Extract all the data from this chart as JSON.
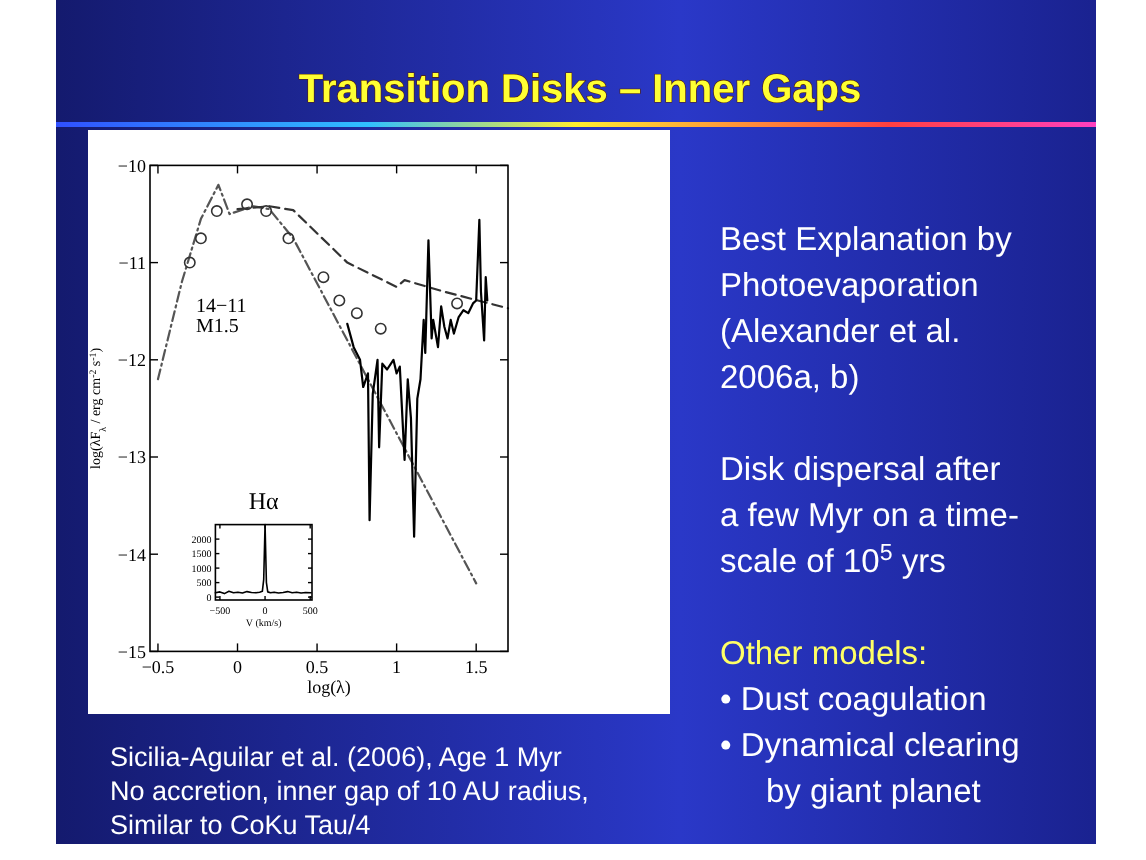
{
  "chart_data": [
    {
      "type": "line",
      "xlabel": "log(λ)",
      "ylabel": "log(λF$_{λ}$ / erg cm$^{-2}$ s$^{-1}$)",
      "xlim": [
        -0.55,
        1.7
      ],
      "ylim": [
        -15,
        -10
      ],
      "xticks": [
        {
          "value": -0.5,
          "label": "−0.5"
        },
        0,
        0.5,
        1,
        1.5
      ],
      "yticks": [
        {
          "value": -15,
          "label": "−15"
        },
        {
          "value": -14,
          "label": "−14"
        },
        {
          "value": -13,
          "label": "−13"
        },
        {
          "value": -12,
          "label": "−12"
        },
        {
          "value": -11,
          "label": "−11"
        },
        {
          "value": -10,
          "label": "−10"
        }
      ],
      "annotations": [
        "14−11",
        "M1.5"
      ],
      "series": [
        {
          "type": "line",
          "line_style": "dotted",
          "color": "#555555",
          "x": [
            -0.5,
            -0.35,
            -0.23,
            -0.12,
            -0.05,
            0.1,
            0.2,
            0.35,
            1.5
          ],
          "values": [
            -12.2,
            -11.2,
            -10.55,
            -10.2,
            -10.5,
            -10.42,
            -10.45,
            -10.75,
            -14.3
          ]
        },
        {
          "type": "line",
          "line_style": "dashed",
          "color": "#333333",
          "x": [
            0,
            0.2,
            0.35,
            0.69,
            1.0,
            1.05,
            1.3,
            1.7
          ],
          "values": [
            -10.45,
            -10.42,
            -10.46,
            -11.0,
            -11.25,
            -11.18,
            -11.3,
            -11.47
          ]
        },
        {
          "type": "scatter",
          "marker": "circle",
          "color": "#333333",
          "x": [
            -0.3,
            -0.23,
            -0.13,
            0.06,
            0.18,
            0.32,
            0.54,
            0.64,
            0.75,
            0.9,
            1.38
          ],
          "values": [
            -11.0,
            -10.75,
            -10.47,
            -10.4,
            -10.47,
            -10.75,
            -11.15,
            -11.39,
            -11.52,
            -11.68,
            -11.42
          ]
        },
        {
          "type": "line",
          "line_style": "solid",
          "color": "#000000",
          "x": [
            0.69,
            0.73,
            0.77,
            0.79,
            0.82,
            0.83,
            0.85,
            0.88,
            0.89,
            0.91,
            0.94,
            0.98,
            1.0,
            1.02,
            1.05,
            1.07,
            1.09,
            1.11,
            1.13,
            1.15,
            1.17,
            1.18,
            1.2,
            1.22,
            1.23,
            1.26,
            1.28,
            1.3,
            1.32,
            1.34,
            1.36,
            1.39,
            1.42,
            1.45,
            1.48,
            1.5,
            1.52,
            1.53,
            1.55,
            1.56,
            1.57
          ],
          "values": [
            -11.63,
            -11.87,
            -12.0,
            -12.28,
            -12.14,
            -13.65,
            -12.35,
            -12.0,
            -12.9,
            -12.04,
            -12.1,
            -12.0,
            -12.14,
            -12.07,
            -13.03,
            -12.2,
            -12.6,
            -13.82,
            -12.4,
            -12.2,
            -11.59,
            -11.93,
            -10.77,
            -11.78,
            -11.59,
            -11.87,
            -11.45,
            -11.66,
            -11.78,
            -11.59,
            -11.73,
            -11.56,
            -11.49,
            -11.52,
            -11.42,
            -11.39,
            -10.56,
            -11.3,
            -11.8,
            -11.15,
            -11.39
          ]
        }
      ]
    },
    {
      "type": "line",
      "title": "Hα",
      "xlabel": "V (km/s)",
      "xlim": [
        -550,
        520
      ],
      "ylim": [
        -100,
        2500
      ],
      "xticks": [
        {
          "value": -500,
          "label": "−500"
        },
        0,
        500
      ],
      "yticks": [
        0,
        500,
        1000,
        1500,
        2000
      ],
      "series": [
        {
          "type": "line",
          "line_style": "solid",
          "color": "#000000",
          "x": [
            -550,
            -500,
            -450,
            -400,
            -350,
            -300,
            -250,
            -200,
            -150,
            -100,
            -60,
            -30,
            -15,
            0,
            15,
            30,
            60,
            100,
            150,
            200,
            250,
            300,
            350,
            400,
            450,
            510
          ],
          "values": [
            150,
            180,
            120,
            200,
            150,
            170,
            140,
            190,
            160,
            150,
            170,
            200,
            600,
            2500,
            500,
            180,
            150,
            170,
            140,
            160,
            190,
            150,
            170,
            140,
            160,
            150
          ]
        }
      ]
    },
    {
      "type": "other",
      "title": "Transition Disks – Inner Gaps",
      "annotations": [
        "Best Explanation by",
        "Photoevaporation",
        "(Alexander et al.",
        "2006a, b)",
        "Disk dispersal after",
        "a few Myr on a time-",
        "scale of 10$^{5}$ yrs",
        "Other models:",
        "• Dust coagulation",
        "• Dynamical clearing",
        "by giant planet",
        "Sicilia-Aguilar et al. (2006), Age 1 Myr",
        "No accretion, inner gap of 10 AU radius,",
        "Similar to CoKu Tau/4"
      ]
    }
  ]
}
